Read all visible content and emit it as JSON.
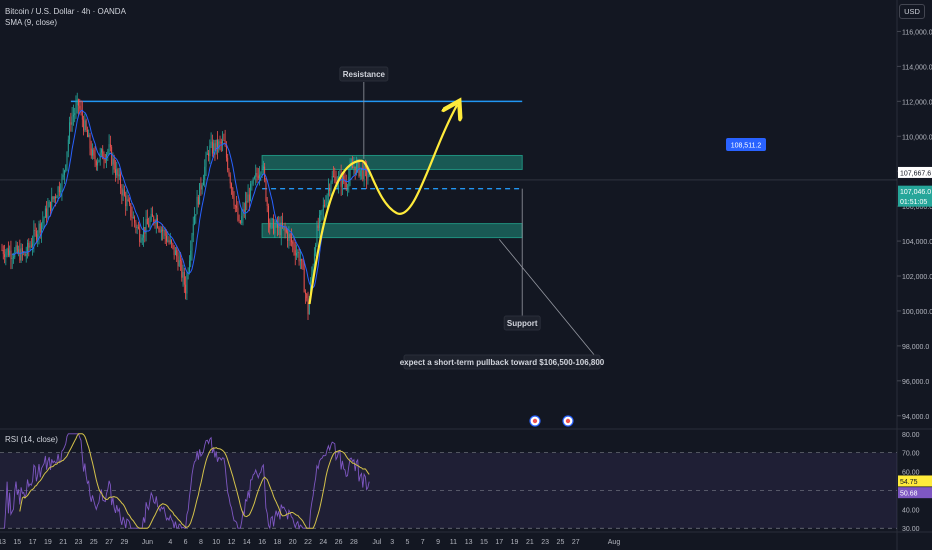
{
  "header": {
    "title": "Bitcoin / U.S. Dollar · 4h · OANDA",
    "sma": "SMA (9, close)",
    "currency": "USD"
  },
  "rsi_label": "RSI (14, close)",
  "colors": {
    "background": "#131722",
    "up": "#26a69a",
    "down": "#ef5350",
    "sma": "#2962ff",
    "zone": "#1f8f7d",
    "resistance_line": "#2196f3",
    "arrow": "#ffeb3b",
    "rsi": "#7e57c2",
    "rsi_ma": "#d4c24a"
  },
  "chart_data": [
    {
      "type": "candlestick",
      "title": "Bitcoin / U.S. Dollar · 4h · OANDA",
      "indicator": "SMA (9, close)",
      "ylim": [
        93300,
        117800
      ],
      "y_ticks": [
        "116,000.0",
        "114,000.0",
        "112,000.0",
        "110,000.0",
        "108,000.0",
        "106,000.0",
        "104,000.0",
        "102,000.0",
        "100,000.0",
        "98,000.0",
        "96,000.0",
        "94,000.0"
      ],
      "x_ticks": [
        "13",
        "15",
        "17",
        "19",
        "21",
        "23",
        "25",
        "27",
        "29",
        "Jun",
        "4",
        "6",
        "8",
        "10",
        "12",
        "14",
        "16",
        "18",
        "20",
        "22",
        "24",
        "26",
        "28",
        "Jul",
        "3",
        "5",
        "7",
        "9",
        "11",
        "13",
        "15",
        "17",
        "19",
        "21",
        "23",
        "25",
        "27",
        "Aug"
      ],
      "close_path": [
        [
          "May 13",
          103500
        ],
        [
          "May 16",
          103200
        ],
        [
          "May 19",
          105800
        ],
        [
          "May 21",
          107600
        ],
        [
          "May 22",
          111000
        ],
        [
          "May 23",
          111800
        ],
        [
          "May 25",
          108600
        ],
        [
          "May 27",
          109200
        ],
        [
          "May 29",
          106500
        ],
        [
          "May 31",
          104400
        ],
        [
          "Jun 2",
          105400
        ],
        [
          "Jun 5",
          103000
        ],
        [
          "Jun 6",
          101300
        ],
        [
          "Jun 7",
          105200
        ],
        [
          "Jun 9",
          109200
        ],
        [
          "Jun 11",
          109600
        ],
        [
          "Jun 13",
          104800
        ],
        [
          "Jun 14",
          106300
        ],
        [
          "Jun 16",
          108500
        ],
        [
          "Jun 17",
          104900
        ],
        [
          "Jun 19",
          104600
        ],
        [
          "Jun 21",
          103000
        ],
        [
          "Jun 22",
          100000
        ],
        [
          "Jun 23",
          104200
        ],
        [
          "Jun 25",
          107600
        ],
        [
          "Jun 27",
          107400
        ],
        [
          "Jun 28",
          108300
        ],
        [
          "Jun 30",
          107700
        ]
      ],
      "last_price": "107,667.6",
      "current_price": "107,046.0",
      "countdown": "01:51:05",
      "target_price": "108,511.2",
      "resistance_level": 112000,
      "resistance_zone": [
        108100,
        108900
      ],
      "support_zone": [
        104200,
        105000
      ],
      "dashed_level": 107000,
      "annotations": {
        "resistance": "Resistance",
        "support": "Support",
        "note": "expect a short-term pullback toward $106,500-106,800"
      }
    },
    {
      "type": "line",
      "title": "RSI (14, close)",
      "ylim": [
        28,
        82
      ],
      "y_ticks": [
        "80.00",
        "70.00",
        "60.00",
        "50.00",
        "40.00",
        "30.00"
      ],
      "bands": [
        30,
        50,
        70
      ],
      "rsi_value": "54.75",
      "ma_value": "50.68"
    }
  ]
}
